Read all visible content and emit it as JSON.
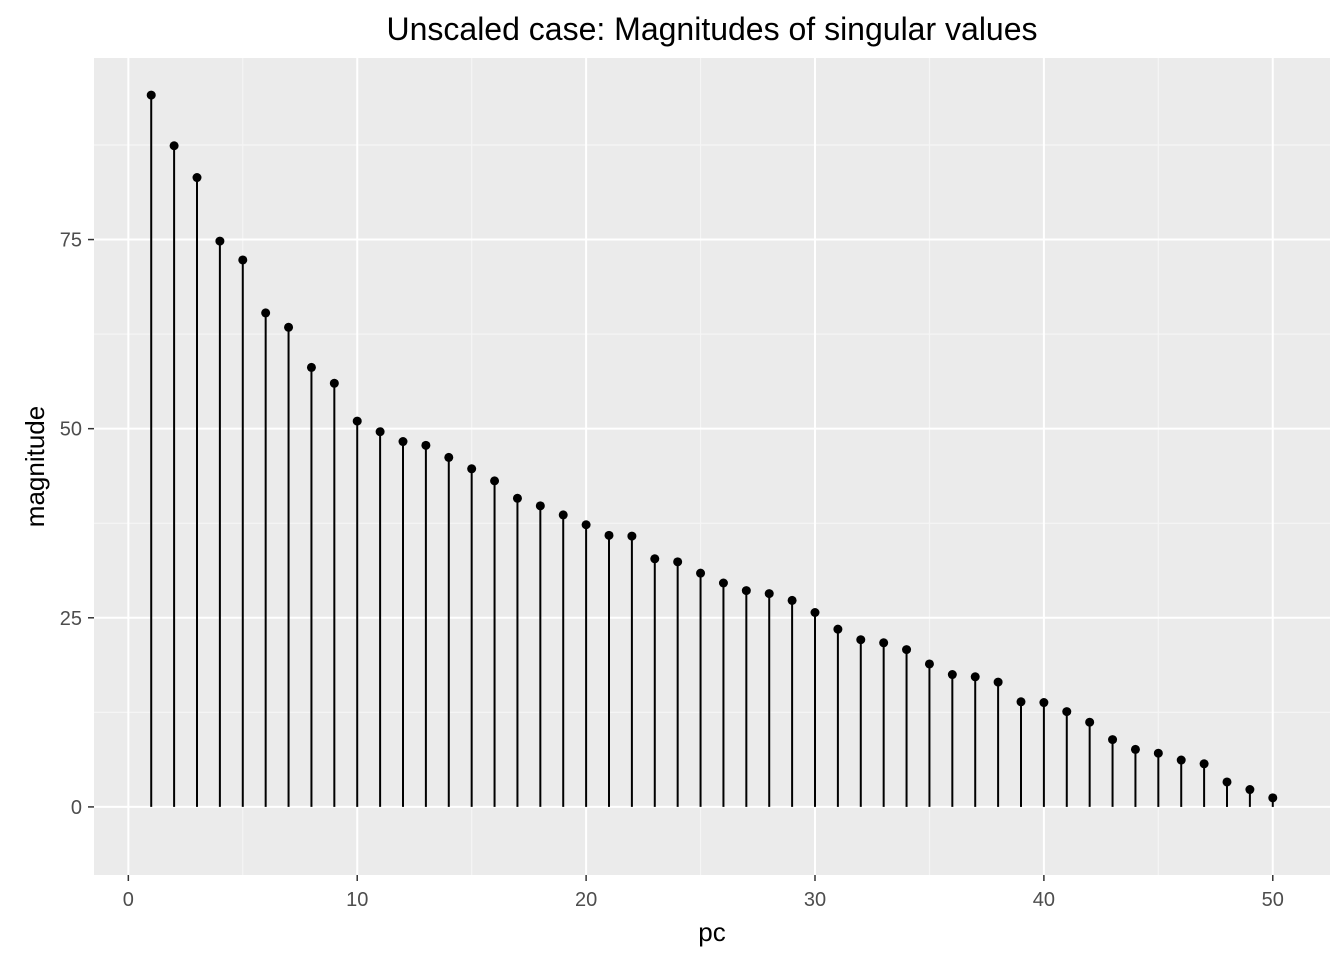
{
  "colors": {
    "panel_background": "#EBEBEB",
    "grid_major": "#FFFFFF",
    "grid_minor": "#F5F5F5",
    "tick_text": "#4D4D4D",
    "tick_mark": "#333333",
    "mark": "#000000"
  },
  "chart_data": {
    "type": "scatter",
    "style": "lollipop",
    "title": "Unscaled case: Magnitudes of singular values",
    "xlabel": "pc",
    "ylabel": "magnitude",
    "xlim": [
      -1.5,
      52.5
    ],
    "ylim": [
      -9,
      99
    ],
    "x_ticks": [
      0,
      10,
      20,
      30,
      40,
      50
    ],
    "x_tick_labels": [
      "0",
      "10",
      "20",
      "30",
      "40",
      "50"
    ],
    "y_ticks": [
      0,
      25,
      50,
      75
    ],
    "y_tick_labels": [
      "0",
      "25",
      "50",
      "75"
    ],
    "grid": true,
    "legend": "none",
    "x": [
      1,
      2,
      3,
      4,
      5,
      6,
      7,
      8,
      9,
      10,
      11,
      12,
      13,
      14,
      15,
      16,
      17,
      18,
      19,
      20,
      21,
      22,
      23,
      24,
      25,
      26,
      27,
      28,
      29,
      30,
      31,
      32,
      33,
      34,
      35,
      36,
      37,
      38,
      39,
      40,
      41,
      42,
      43,
      44,
      45,
      46,
      47,
      48,
      49,
      50
    ],
    "values": [
      94.1,
      87.4,
      83.2,
      74.8,
      72.3,
      65.3,
      63.4,
      58.1,
      56.0,
      51.0,
      49.6,
      48.3,
      47.8,
      46.2,
      44.7,
      43.1,
      40.8,
      39.8,
      38.6,
      37.3,
      35.9,
      35.8,
      32.8,
      32.4,
      30.9,
      29.6,
      28.6,
      28.2,
      27.3,
      25.7,
      23.5,
      22.1,
      21.7,
      20.8,
      18.9,
      17.5,
      17.2,
      16.5,
      13.9,
      13.8,
      12.6,
      11.2,
      8.9,
      7.6,
      7.1,
      6.2,
      5.7,
      3.3,
      2.3,
      1.2
    ]
  }
}
